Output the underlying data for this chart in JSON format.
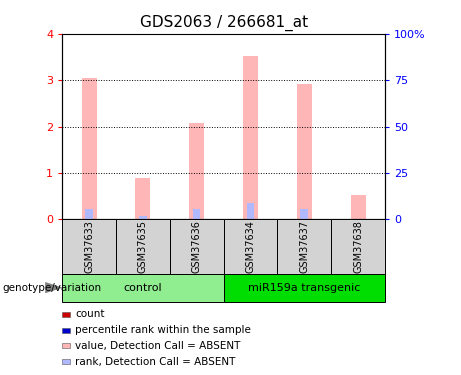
{
  "title": "GDS2063 / 266681_at",
  "samples": [
    "GSM37633",
    "GSM37635",
    "GSM37636",
    "GSM37634",
    "GSM37637",
    "GSM37638"
  ],
  "pink_values": [
    3.05,
    0.9,
    2.08,
    3.52,
    2.92,
    0.52
  ],
  "blue_values": [
    0.22,
    0.07,
    0.22,
    0.35,
    0.22,
    0.0
  ],
  "ylim_left": [
    0,
    4
  ],
  "ylim_right": [
    0,
    100
  ],
  "yticks_left": [
    0,
    1,
    2,
    3,
    4
  ],
  "yticks_right": [
    0,
    25,
    50,
    75,
    100
  ],
  "ytick_labels_right": [
    "0",
    "25",
    "50",
    "75",
    "100%"
  ],
  "pink_color": "#ffb6b6",
  "blue_color": "#b0b8ff",
  "sample_box_color": "#d3d3d3",
  "group1_color": "#90ee90",
  "group2_color": "#00dd00",
  "genotype_label": "genotype/variation",
  "group1_name": "control",
  "group2_name": "miR159a transgenic",
  "legend_items": [
    {
      "label": "count",
      "color": "#cc0000"
    },
    {
      "label": "percentile rank within the sample",
      "color": "#0000cc"
    },
    {
      "label": "value, Detection Call = ABSENT",
      "color": "#ffb6b6"
    },
    {
      "label": "rank, Detection Call = ABSENT",
      "color": "#b0b8ff"
    }
  ]
}
